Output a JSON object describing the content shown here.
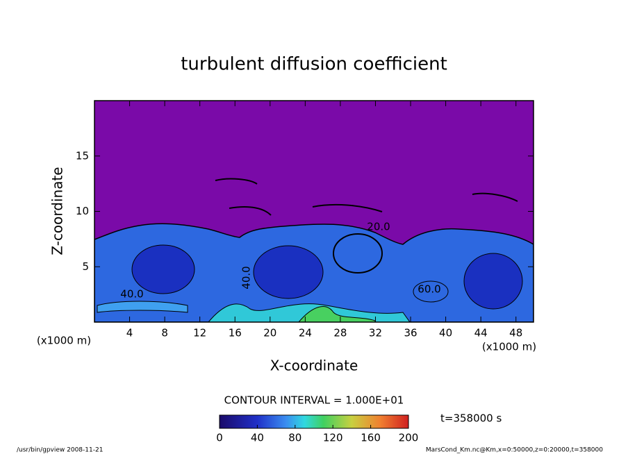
{
  "chart_data": {
    "type": "contour",
    "title": "turbulent diffusion coefficient",
    "x_label": "X-coordinate",
    "y_label": "Z-coordinate",
    "x_unit": "(x1000 m)",
    "xlim": [
      0,
      50
    ],
    "xticks": [
      4,
      8,
      12,
      16,
      20,
      24,
      28,
      32,
      36,
      40,
      44,
      48
    ],
    "ylim": [
      0,
      20
    ],
    "yticks": [
      5,
      10,
      15
    ],
    "contour_interval": "CONTOUR INTERVAL = 1.000E+01",
    "time_label": "t=358000 s",
    "colorbar": {
      "lim": [
        0,
        200
      ],
      "ticks": [
        0,
        40,
        80,
        120,
        160,
        200
      ]
    },
    "annotations": [
      "40.0",
      "20.0",
      "40.0",
      "60.0"
    ],
    "footer_left": "/usr/bin/gpview  2008-11-21",
    "footer_right": "MarsCond_Km.nc@Km,x=0:50000,z=0:20000,t=358000"
  }
}
